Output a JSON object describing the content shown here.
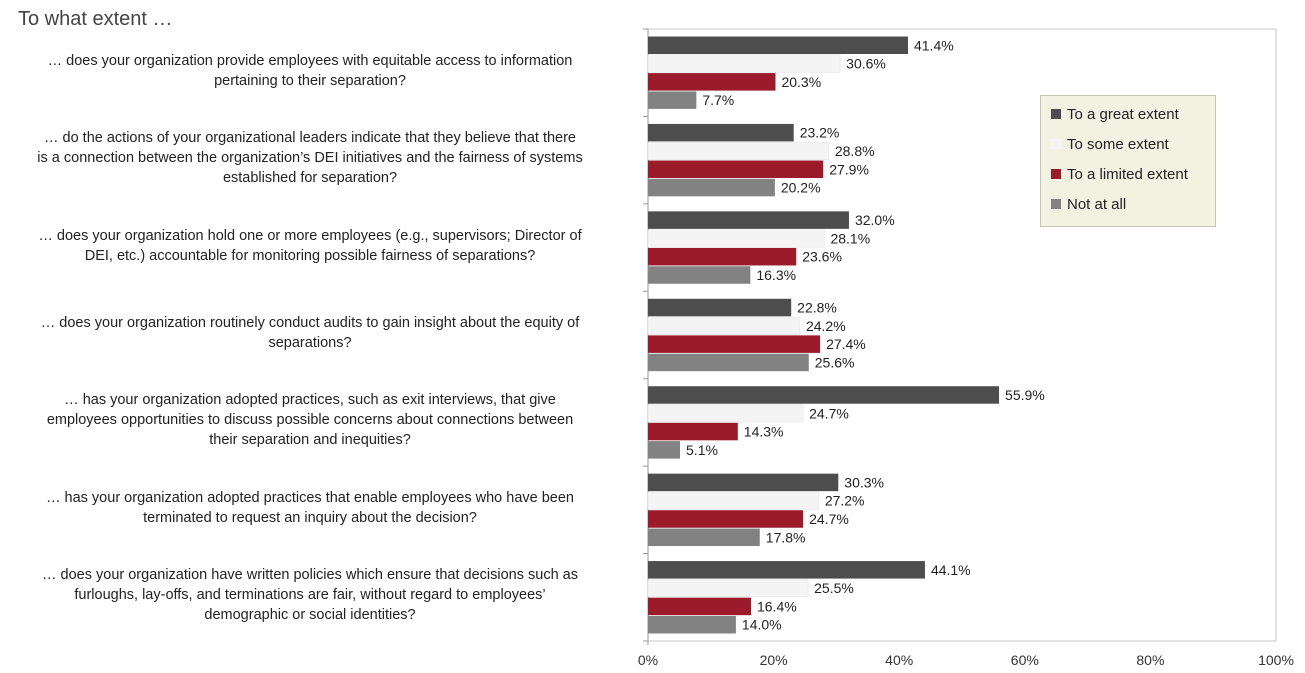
{
  "header": "To what extent …",
  "chart_data": {
    "type": "bar",
    "orientation": "horizontal",
    "categories": [
      "… does your organization provide employees with equitable access to information pertaining to their separation?",
      "… do the actions of your organizational leaders indicate that they believe that there is a connection between the organization’s DEI initiatives and the fairness of systems established for separation?",
      "… does your organization hold one or more employees (e.g., supervisors; Director of DEI, etc.) accountable for monitoring possible fairness of separations?",
      "… does your organization routinely conduct audits to gain insight about the equity of separations?",
      "… has your organization adopted practices, such as exit interviews, that give employees opportunities to discuss possible concerns about connections between their separation and inequities?",
      "… has your organization adopted practices that enable employees who have been terminated to request an inquiry about the decision?",
      "… does your organization have written policies which ensure that decisions such as furloughs, lay-offs, and terminations are fair, without regard to employees’ demographic or social identities?"
    ],
    "category_lines": [
      [
        "… does your organization provide employees with equitable access to information",
        "pertaining to their separation?"
      ],
      [
        "… do the actions of your organizational leaders indicate that they believe that there",
        "is a connection between the organization’s DEI initiatives and the fairness of systems",
        "established for separation?"
      ],
      [
        "… does your organization hold one or more employees (e.g., supervisors; Director of",
        "DEI, etc.) accountable for monitoring possible fairness of separations?"
      ],
      [
        "… does your organization routinely conduct audits to gain insight about the equity of",
        "separations?"
      ],
      [
        "… has your organization adopted practices, such as exit interviews, that give",
        "employees opportunities to discuss possible concerns about connections between",
        "their separation and inequities?"
      ],
      [
        "… has your organization adopted practices that enable employees who have been",
        "terminated to request an inquiry about the decision?"
      ],
      [
        "… does your organization have written policies which ensure that decisions such as",
        "furloughs, lay-offs, and terminations are fair, without regard to employees’",
        "demographic or social identities?"
      ]
    ],
    "series": [
      {
        "name": "To a great extent",
        "color": "#4d4d4d",
        "values": [
          41.4,
          23.2,
          32.0,
          22.8,
          55.9,
          30.3,
          44.1
        ]
      },
      {
        "name": "To some extent",
        "color": "#f4f4f4",
        "values": [
          30.6,
          28.8,
          28.1,
          24.2,
          24.7,
          27.2,
          25.5
        ]
      },
      {
        "name": "To a limited extent",
        "color": "#9b1b2a",
        "values": [
          20.3,
          27.9,
          23.6,
          27.4,
          14.3,
          24.7,
          16.4
        ]
      },
      {
        "name": "Not at all",
        "color": "#828282",
        "values": [
          7.7,
          20.2,
          16.3,
          25.6,
          5.1,
          17.8,
          14.0
        ]
      }
    ],
    "value_format": "percent_1dp",
    "xlim": [
      0,
      100
    ],
    "xticks": [
      "0%",
      "20%",
      "40%",
      "60%",
      "80%",
      "100%"
    ],
    "legend_position": "right",
    "grid": false
  }
}
